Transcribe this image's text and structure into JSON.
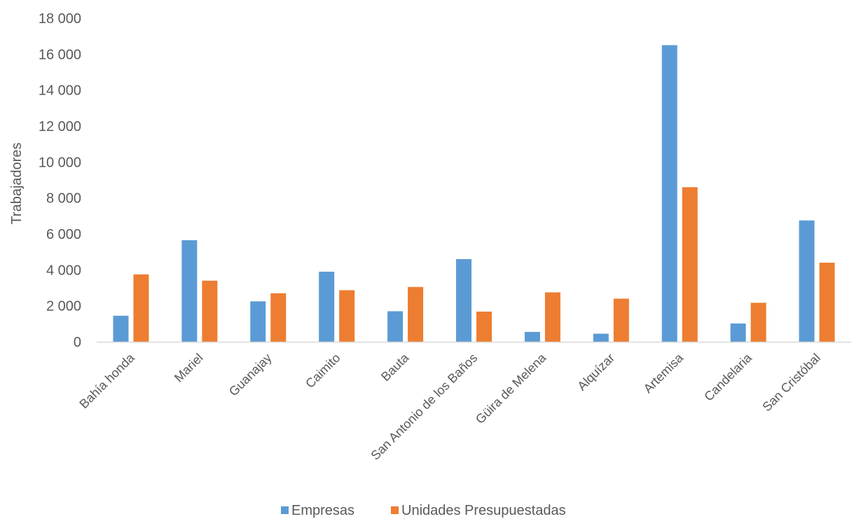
{
  "chart_data": {
    "type": "bar",
    "title": "",
    "xlabel": "",
    "ylabel": "Trabajadores",
    "ylim": [
      0,
      18000
    ],
    "y_ticks": [
      0,
      2000,
      4000,
      6000,
      8000,
      10000,
      12000,
      14000,
      16000,
      18000
    ],
    "y_tick_labels": [
      "0",
      "2 000",
      "4 000",
      "6 000",
      "8 000",
      "10 000",
      "12 000",
      "14 000",
      "16 000",
      "18 000"
    ],
    "grid": false,
    "legend_position": "bottom",
    "categories": [
      "Bahía honda",
      "Mariel",
      "Guanajay",
      "Caimito",
      "Bauta",
      "San Antonio de los Baños",
      "Güira de Melena",
      "Alquízar",
      "Artemisa",
      "Candelaria",
      "San Cristóbal"
    ],
    "series": [
      {
        "name": "Empresas",
        "color": "#5B9BD5",
        "values": [
          1450,
          5650,
          2250,
          3900,
          1700,
          4600,
          550,
          450,
          16500,
          1020,
          6750
        ]
      },
      {
        "name": "Unidades Presupuestadas",
        "color": "#ED7D31",
        "values": [
          3750,
          3400,
          2700,
          2870,
          3050,
          1680,
          2750,
          2400,
          8600,
          2170,
          4400
        ]
      }
    ]
  }
}
